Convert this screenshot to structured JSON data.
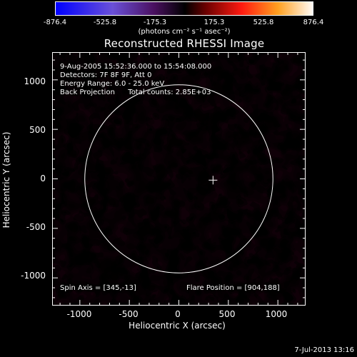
{
  "colorbar": {
    "tick_labels": [
      "-876.4",
      "-525.8",
      "-175.3",
      "175.3",
      "525.8",
      "876.4"
    ],
    "units_label": "(photons cm⁻² s⁻¹ asec⁻²)"
  },
  "title": "Reconstructed RHESSI Image",
  "info": {
    "line1": "9-Aug-2005 15:52:36.000 to 15:54:08.000",
    "line2": "Detectors: 7F 8F 9F, Att 0",
    "line3": "Energy Range: 6.0 - 25.0 keV",
    "line4_left": "Back Projection",
    "line4_right": "Total counts: 2.85E+03",
    "spin_axis": "Spin Axis = [345,-13]",
    "flare_position": "Flare Position = [904,188]"
  },
  "footer_date": "7-Jul-2013 13:16",
  "chart_data": {
    "type": "heatmap",
    "title": "Reconstructed RHESSI Image",
    "xlabel": "Heliocentric X (arcsec)",
    "ylabel": "Heliocentric Y (arcsec)",
    "xlim": [
      -1280,
      1280
    ],
    "ylim": [
      -1280,
      1280
    ],
    "x_ticks": [
      "-1000",
      "-500",
      "0",
      "500",
      "1000"
    ],
    "y_ticks": [
      "1000",
      "500",
      "0",
      "-500",
      "-1000"
    ],
    "x_tick_values": [
      -1000,
      -500,
      0,
      500,
      1000
    ],
    "y_tick_values": [
      1000,
      500,
      0,
      -500,
      -1000
    ],
    "color_range": [
      -876.4,
      876.4
    ],
    "solar_limb_radius": 950,
    "cross_marker": [
      345,
      -13
    ],
    "colors": {
      "negative": "#0000ff",
      "mid_negative": "#7a3aa8",
      "zero": "#1a0010",
      "positive_low": "#cc1010",
      "positive_high": "#ff9020",
      "max": "#ffffe0"
    }
  }
}
